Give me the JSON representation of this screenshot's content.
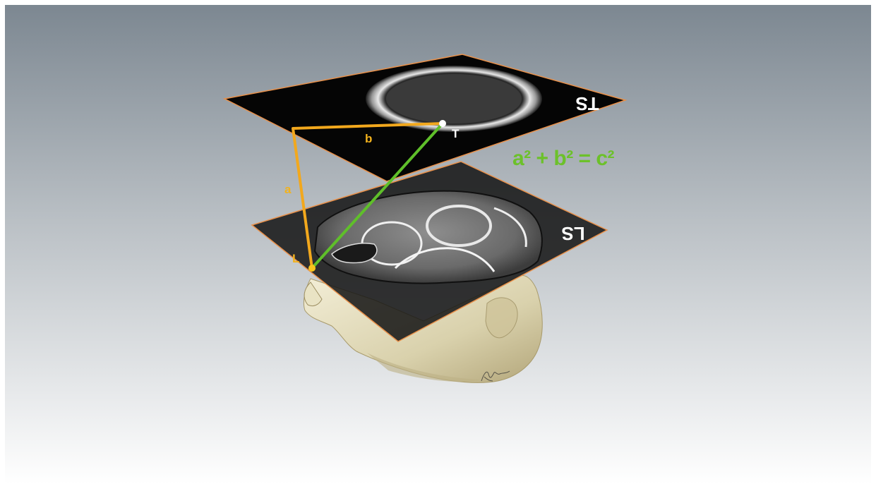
{
  "planes": {
    "top": {
      "label": "TS"
    },
    "bottom": {
      "label": "LS"
    }
  },
  "points": {
    "T": {
      "label": "T"
    },
    "L": {
      "label": "L"
    }
  },
  "edges": {
    "a": {
      "label": "a"
    },
    "b": {
      "label": "b"
    }
  },
  "equation": {
    "text": "a² + b² = c²"
  },
  "colors": {
    "background_top": "#7b8690",
    "background_bottom": "#ffffff",
    "plane_fill": "#050505",
    "plane_border": "#e8904a",
    "leg_lines": "#f2a81d",
    "hypotenuse": "#5fbf2a",
    "equation": "#6cc12a",
    "point_T": "#ffffff",
    "point_L": "#f7c51d",
    "bone": "#f2f2f2",
    "skin": "#e8e2c6"
  }
}
